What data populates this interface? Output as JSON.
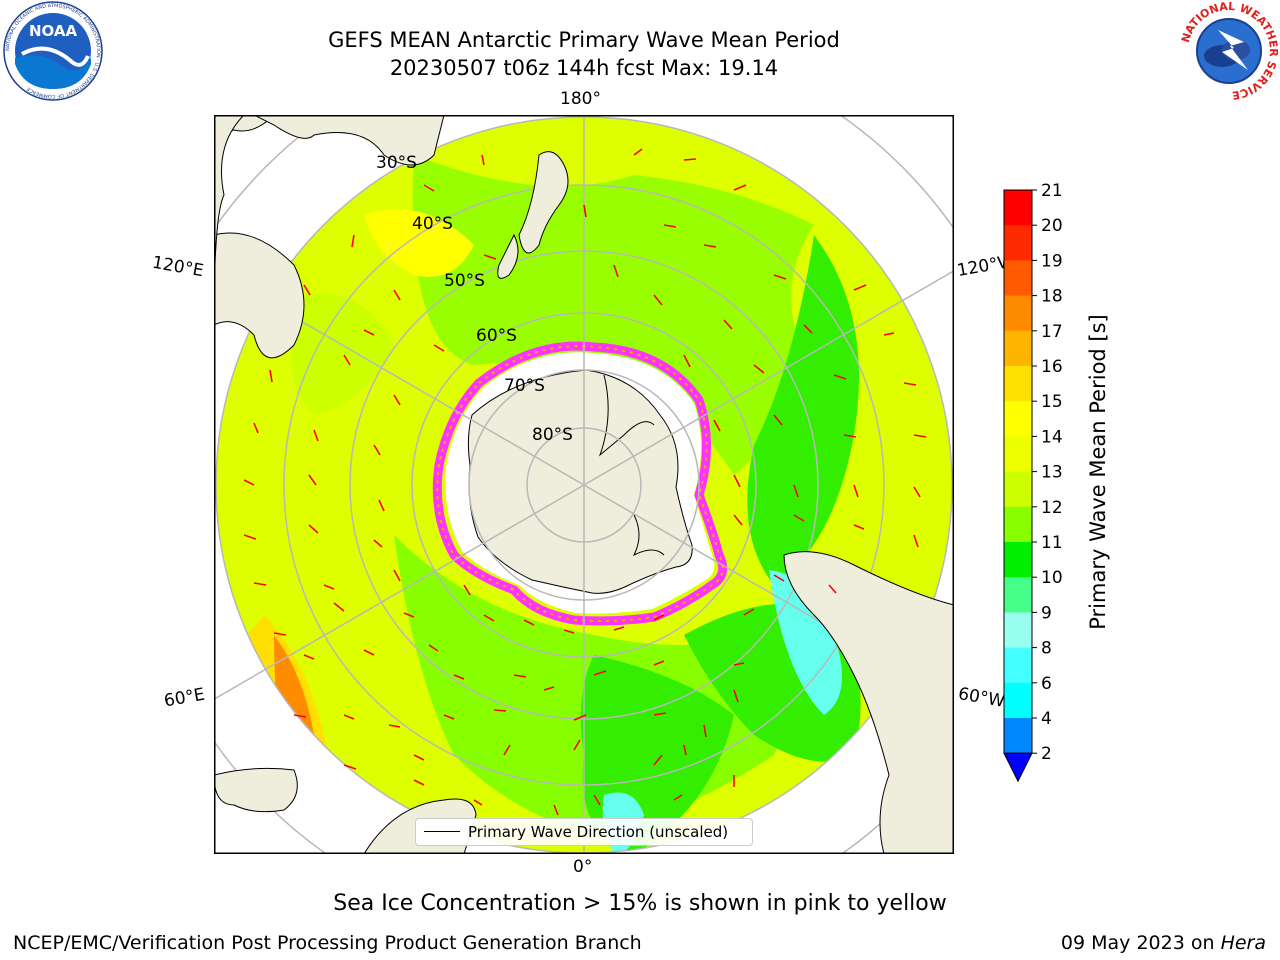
{
  "title": {
    "line1": "GEFS MEAN Antarctic Primary Wave Mean Period",
    "line2": "20230507 t06z 144h fcst   Max: 19.14"
  },
  "logos": {
    "left": "noaa-logo",
    "left_text": "NOAA",
    "left_ring_text": "NATIONAL OCEANIC AND ATMOSPHERIC ADMINISTRATION · U.S. DEPARTMENT OF COMMERCE",
    "right": "nws-logo",
    "right_ring_text": "NATIONAL WEATHER SERVICE"
  },
  "map": {
    "projection": "south-polar-stereographic",
    "longitude_labels": {
      "top": "180°",
      "bottom": "0°",
      "left_upper": "120°E",
      "left_lower": "60°E",
      "right_upper": "120°W",
      "right_lower": "60°W"
    },
    "latitude_labels": [
      "30°S",
      "40°S",
      "50°S",
      "60°S",
      "70°S",
      "80°S"
    ],
    "latitude_circles": [
      30,
      40,
      50,
      60,
      70,
      80
    ],
    "meridians_deg": [
      0,
      60,
      120,
      180,
      240,
      300
    ],
    "land_color": "#efeedc",
    "arrow_color": "#ff0000",
    "ice_colors": [
      "#ff33ff",
      "#ffaa00",
      "#ffff55"
    ],
    "legend": {
      "label": "Primary Wave Direction (unscaled)"
    }
  },
  "colorbar": {
    "label": "Primary Wave Mean Period [s]",
    "ticks": [
      "21",
      "20",
      "19",
      "18",
      "17",
      "16",
      "15",
      "14",
      "13",
      "12",
      "11",
      "10",
      "9",
      "8",
      "6",
      "4",
      "2"
    ],
    "colors_top_to_bottom": [
      "#ff0000",
      "#ff2a00",
      "#ff5a00",
      "#ff8c00",
      "#ffb400",
      "#ffe000",
      "#ffff00",
      "#eeff00",
      "#ccff00",
      "#88ff00",
      "#00ee00",
      "#44ff88",
      "#99ffee",
      "#44ffff",
      "#00ffff",
      "#0088ff"
    ],
    "extend_color": "#0000ff"
  },
  "footer": {
    "ice_note": "Sea Ice Concentration > 15% is shown in pink to yellow",
    "credit": "NCEP/EMC/Verification Post Processing Product Generation Branch",
    "date": "09 May 2023 on",
    "host": "Hera"
  }
}
